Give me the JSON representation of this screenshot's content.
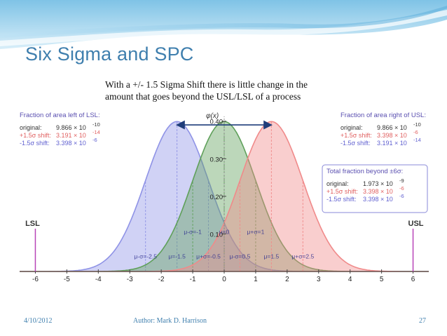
{
  "slide": {
    "title": "Six Sigma and SPC",
    "subtitle_lines": [
      "With a  +/- 1.5 Sigma Shift there is little change in the",
      "amount that goes beyond the USL/LSL of a process"
    ],
    "footer": {
      "date": "4/10/2012",
      "author": "Author: Mark D. Harrison",
      "page": "27"
    }
  },
  "colors": {
    "title": "#3f7fae",
    "blue_curve": "#8f93e6",
    "green_curve": "#5fa05a",
    "red_curve": "#f08a8a",
    "limit_line": "#b844b8",
    "arrow": "#1f3d7a"
  },
  "chart_data": {
    "type": "area",
    "ylabel": "φ(x)",
    "x_ticks": [
      -6,
      -5,
      -4,
      -3,
      -2,
      -1,
      0,
      1,
      2,
      3,
      4,
      5,
      6
    ],
    "y_ticks": [
      {
        "value": 0.4,
        "label": "0.40"
      },
      {
        "value": 0.3,
        "label": "0.30"
      },
      {
        "value": 0.2,
        "label": "0.20"
      },
      {
        "value": 0.1,
        "label": "0.10"
      }
    ],
    "xlim": [
      -6.5,
      6.5
    ],
    "ylim": [
      0,
      0.42
    ],
    "series": [
      {
        "name": "-1.5σ shift",
        "mean": -1.5,
        "sd": 1,
        "color": "#8f93e6"
      },
      {
        "name": "original",
        "mean": 0,
        "sd": 1,
        "color": "#5fa05a"
      },
      {
        "name": "+1.5σ shift",
        "mean": 1.5,
        "sd": 1,
        "color": "#f08a8a"
      }
    ],
    "mean_labels": [
      {
        "x": -1,
        "y": 0.1,
        "text": "μ-σ=-1"
      },
      {
        "x": 0,
        "y": 0.1,
        "text": "μ=0"
      },
      {
        "x": 1,
        "y": 0.1,
        "text": "μ+σ=1"
      },
      {
        "x": -2.5,
        "y": 0.035,
        "text": "μ-σ=-2.5"
      },
      {
        "x": -1.5,
        "y": 0.035,
        "text": "μ=-1.5"
      },
      {
        "x": -0.5,
        "y": 0.035,
        "text": "μ+σ=-0.5"
      },
      {
        "x": 0.5,
        "y": 0.035,
        "text": "μ-σ=0.5"
      },
      {
        "x": 1.5,
        "y": 0.035,
        "text": "μ=1.5"
      },
      {
        "x": 2.5,
        "y": 0.035,
        "text": "μ+σ=2.5"
      }
    ],
    "limits": [
      {
        "label": "LSL",
        "x": -6
      },
      {
        "label": "USL",
        "x": 6
      }
    ],
    "shift_arrow": {
      "from": -1.5,
      "to": 1.5,
      "y": 0.39
    },
    "annotations": {
      "left": {
        "title": "Fraction of area left of LSL:",
        "rows": [
          {
            "label": "original:",
            "value": "9.866 × 10",
            "exp": "-10"
          },
          {
            "label": "+1.5σ shift:",
            "value": "3.191 × 10",
            "exp": "-14"
          },
          {
            "label": "-1.5σ shift:",
            "value": "3.398 × 10",
            "exp": "-6"
          }
        ]
      },
      "right": {
        "title": "Fraction of area right of USL:",
        "rows": [
          {
            "label": "original:",
            "value": "9.866 × 10",
            "exp": "-10"
          },
          {
            "label": "+1.5σ shift:",
            "value": "3.398 × 10",
            "exp": "-6"
          },
          {
            "label": "-1.5σ shift:",
            "value": "3.191 × 10",
            "exp": "-14"
          }
        ]
      },
      "total": {
        "title": "Total fraction beyond ±6σ:",
        "rows": [
          {
            "label": "original:",
            "value": "1.973 × 10",
            "exp": "-9"
          },
          {
            "label": "+1.5σ shift:",
            "value": "3.398 × 10",
            "exp": "-6"
          },
          {
            "label": "-1.5σ shift:",
            "value": "3.398 × 10",
            "exp": "-6"
          }
        ]
      }
    }
  }
}
